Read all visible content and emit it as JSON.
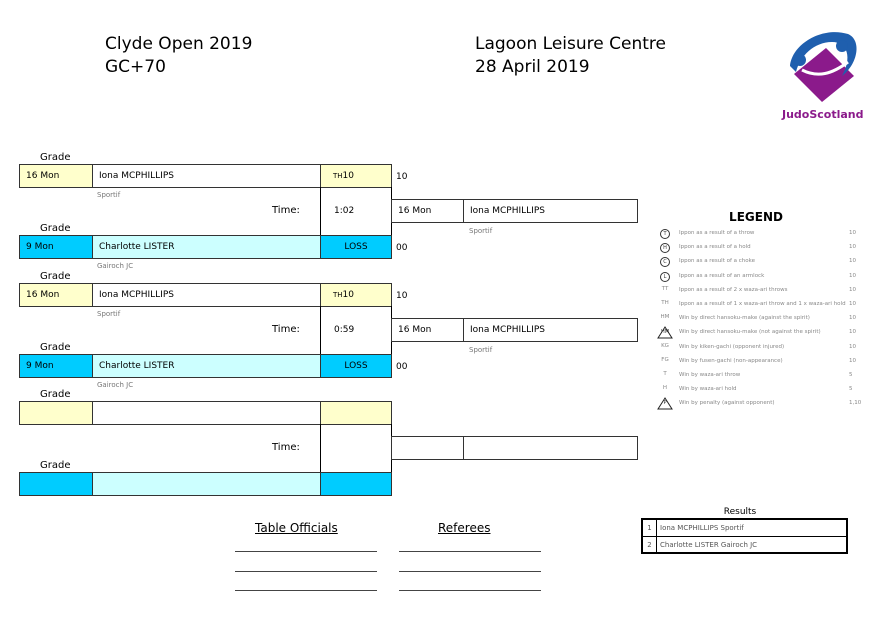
{
  "header": {
    "event": "Clyde Open 2019",
    "category": "GC+70",
    "venue": "Lagoon Leisure Centre",
    "date": "28 April 2019",
    "logo_text": "JudoScotland"
  },
  "grade_label": "Grade",
  "time_label": "Time:",
  "colors": {
    "winner_grade": "#ffffcc",
    "loser_grade": "#00ccff",
    "loser_name": "#ccffff",
    "logo_purple": "#8b1a8b",
    "logo_blue": "#1f5fae"
  },
  "matches": [
    {
      "white": {
        "grade": "16 Mon",
        "name": "Iona MCPHILLIPS",
        "club": "Sportif",
        "score_code": "TH",
        "score": "10",
        "total": "10"
      },
      "blue": {
        "grade": "9 Mon",
        "name": "Charlotte LISTER",
        "club": "Gairoch JC",
        "score": "LOSS",
        "total": "00"
      },
      "time": "1:02",
      "winner": {
        "grade": "16 Mon",
        "name": "Iona MCPHILLIPS",
        "club": "Sportif"
      }
    },
    {
      "white": {
        "grade": "16 Mon",
        "name": "Iona MCPHILLIPS",
        "club": "Sportif",
        "score_code": "TH",
        "score": "10",
        "total": "10"
      },
      "blue": {
        "grade": "9 Mon",
        "name": "Charlotte LISTER",
        "club": "Gairoch JC",
        "score": "LOSS",
        "total": "00"
      },
      "time": "0:59",
      "winner": {
        "grade": "16 Mon",
        "name": "Iona MCPHILLIPS",
        "club": "Sportif"
      }
    },
    {
      "white": {
        "grade": "",
        "name": "",
        "club": "",
        "score_code": "",
        "score": "",
        "total": ""
      },
      "blue": {
        "grade": "",
        "name": "",
        "club": "",
        "score": "",
        "total": ""
      },
      "time": "",
      "winner": {
        "grade": "",
        "name": "",
        "club": ""
      }
    }
  ],
  "legend": {
    "title": "LEGEND",
    "items": [
      {
        "code": "T",
        "icon": "circle",
        "text": "Ippon as a result of a throw",
        "points": "10"
      },
      {
        "code": "H",
        "icon": "circle",
        "text": "Ippon as a result of a hold",
        "points": "10"
      },
      {
        "code": "C",
        "icon": "circle",
        "text": "Ippon as a result of a choke",
        "points": "10"
      },
      {
        "code": "L",
        "icon": "circle",
        "text": "Ippon as a result of an armlock",
        "points": "10"
      },
      {
        "code": "TT",
        "icon": "none",
        "text": "Ippon as a result of 2 x waza-ari throws",
        "points": "10"
      },
      {
        "code": "TH",
        "icon": "none",
        "text": "Ippon as a result of 1 x waza-ari throw and 1 x waza-ari hold",
        "points": "10"
      },
      {
        "code": "HM",
        "icon": "none",
        "text": "Win by direct hansoku-make (against the spirit)",
        "points": "10"
      },
      {
        "code": "HM",
        "icon": "triangle",
        "text": "Win by direct hansoku-make (not against the spirit)",
        "points": "10"
      },
      {
        "code": "KG",
        "icon": "none",
        "text": "Win by kiken-gachi (opponent injured)",
        "points": "10"
      },
      {
        "code": "FG",
        "icon": "none",
        "text": "Win by fusen-gachi (non-appearance)",
        "points": "10"
      },
      {
        "code": "T",
        "icon": "none",
        "text": "Win by waza-ari throw",
        "points": "5"
      },
      {
        "code": "H",
        "icon": "none",
        "text": "Win by waza-ari hold",
        "points": "5"
      },
      {
        "code": "P",
        "icon": "triangle",
        "text": "Win by penalty (against opponent)",
        "points": "1,10"
      }
    ]
  },
  "results": {
    "title": "Results",
    "rows": [
      {
        "place": "1",
        "text": "Iona MCPHILLIPS Sportif"
      },
      {
        "place": "2",
        "text": "Charlotte LISTER Gairoch JC"
      }
    ]
  },
  "officials": {
    "table_officials": "Table Officials",
    "referees": "Referees"
  }
}
